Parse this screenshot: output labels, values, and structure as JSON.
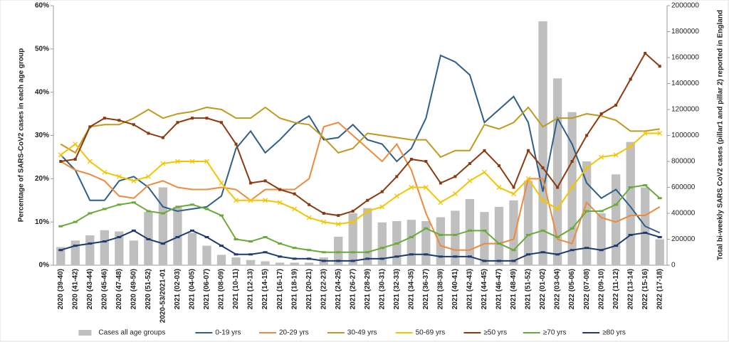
{
  "chart_data": {
    "type": "bar-line",
    "y_label": "Percentage of SARS-CoV2 cases in each age group",
    "y2_label": "Total bi-weekly SARS CoV2 cases (pillar1 and pillar 2) reported in England",
    "categories": [
      "2020 (39-40)",
      "2020 (41-42)",
      "2020 (43-44)",
      "2020 (45-46)",
      "2020 (47-48)",
      "2020 (49-50)",
      "2020 (51-52)",
      "2020-53/2021-01",
      "2021 (02-03)",
      "2021 (04-05)",
      "2021 (06-07)",
      "2021 (08-09)",
      "2021 (10-11)",
      "2021 (12-13)",
      "2021 (14-15)",
      "2021 (16-17)",
      "2021 (18-19)",
      "2021 (20-21)",
      "2021 (22-23)",
      "2021 (24-25)",
      "2021 (26-27)",
      "2021 (28-29)",
      "2021 (30-31)",
      "2021 (32-33)",
      "2021 (34-35)",
      "2021 (36-37)",
      "2021 (38-39)",
      "2021 (40-41)",
      "2021 (42-43)",
      "2021 (44-45)",
      "2021 (46-47)",
      "2021 (48-49)",
      "2021 (51-52)",
      "2022 (01-02)",
      "2022 (03-04)",
      "2022 (05-06)",
      "2022 (07-08)",
      "2022 (09-10)",
      "2022 (11-12)",
      "2022 (13-14)",
      "2022 (15-16)",
      "2022 (17-18)"
    ],
    "ylim": [
      0,
      60
    ],
    "yticks": [
      {
        "value": 0,
        "label": "0%"
      },
      {
        "value": 10,
        "label": "10%"
      },
      {
        "value": 20,
        "label": "20%"
      },
      {
        "value": 30,
        "label": "30%"
      },
      {
        "value": 40,
        "label": "40%"
      },
      {
        "value": 50,
        "label": "50%"
      },
      {
        "value": 60,
        "label": "60%"
      }
    ],
    "y2lim": [
      0,
      2000000
    ],
    "y2ticks": [
      0,
      200000,
      400000,
      600000,
      800000,
      1000000,
      1200000,
      1400000,
      1600000,
      1800000,
      2000000
    ],
    "legend": "bottom",
    "series": [
      {
        "name": "Cases all age groups",
        "kind": "bar",
        "axis": "y2",
        "color": "#bfbfbf",
        "values": [
          140000,
          190000,
          230000,
          270000,
          260000,
          190000,
          410000,
          600000,
          450000,
          250000,
          150000,
          80000,
          60000,
          40000,
          30000,
          20000,
          20000,
          20000,
          60000,
          220000,
          400000,
          440000,
          330000,
          340000,
          350000,
          340000,
          370000,
          420000,
          510000,
          410000,
          450000,
          500000,
          650000,
          1880000,
          1440000,
          1180000,
          800000,
          400000,
          700000,
          950000,
          600000,
          200000
        ]
      },
      {
        "name": "0-19 yrs",
        "kind": "line",
        "marker": "none",
        "color": "#2e5f8a",
        "values": [
          25.5,
          22,
          15,
          15,
          19.5,
          20.5,
          18,
          13.5,
          12.5,
          13,
          13.5,
          16,
          27,
          31,
          26,
          29,
          32.5,
          34.5,
          29,
          29.5,
          32.5,
          29,
          28,
          24,
          27,
          34,
          48.5,
          47,
          44,
          33,
          36,
          39,
          33,
          17,
          34,
          28,
          19,
          15.5,
          17.5,
          13.5,
          9,
          7.5
        ]
      },
      {
        "name": "20-29 yrs",
        "kind": "line",
        "marker": "none",
        "color": "#ed8a3c",
        "values": [
          24,
          22,
          21,
          19.5,
          16,
          15.5,
          18.5,
          19.5,
          18,
          17.5,
          17.5,
          18,
          17.5,
          15,
          17.5,
          17.5,
          17.5,
          20,
          32,
          33,
          30,
          27,
          24,
          28,
          22,
          12,
          4.5,
          3.5,
          3.5,
          5,
          5,
          6,
          20,
          20,
          6,
          5,
          14.5,
          11,
          10,
          11.5,
          11.5,
          13.5
        ]
      },
      {
        "name": "30-49 yrs",
        "kind": "line",
        "marker": "none",
        "color": "#bf9a1d",
        "values": [
          28,
          26,
          32,
          32.5,
          32.5,
          34,
          36,
          34,
          35,
          35.5,
          36.5,
          36,
          34,
          34,
          36.5,
          34,
          33,
          32.5,
          29.5,
          26,
          27,
          30.5,
          30,
          29.5,
          29,
          29,
          25,
          26.5,
          26.5,
          32.5,
          31.5,
          33,
          36.5,
          32,
          34,
          34,
          35,
          34.5,
          33.5,
          31,
          31,
          31.5
        ]
      },
      {
        "name": "50-69 yrs",
        "kind": "line",
        "marker": "x",
        "color": "#f2c500",
        "values": [
          25.5,
          28,
          24,
          21.5,
          20.5,
          19.5,
          20.5,
          23.5,
          24,
          24,
          24,
          19,
          15,
          15,
          15,
          14.5,
          13,
          11,
          10,
          9.5,
          10,
          12.5,
          13.5,
          16,
          18,
          18,
          14.5,
          16.5,
          19.5,
          21.5,
          18,
          16.5,
          20,
          15,
          13,
          18,
          22.5,
          25,
          25.5,
          27.5,
          30.5,
          30.5
        ]
      },
      {
        "name": "≥50 yrs",
        "kind": "line",
        "marker": "square",
        "color": "#8b3a0f",
        "values": [
          24,
          24.5,
          32,
          34,
          33.5,
          32.5,
          30.5,
          29.5,
          33,
          34,
          34,
          33,
          28,
          19,
          19.5,
          17.5,
          16.5,
          14,
          12,
          11.5,
          12.5,
          15,
          17,
          20.5,
          24.5,
          24,
          19,
          20.5,
          23.5,
          26.5,
          23,
          18,
          26.5,
          22.5,
          18,
          24,
          30,
          35,
          37,
          43,
          49,
          46
        ]
      },
      {
        "name": "≥70 yrs",
        "kind": "line",
        "marker": "dash",
        "color": "#6aaa3a",
        "values": [
          9,
          10,
          12,
          13,
          14,
          14.5,
          12.5,
          12,
          13.5,
          14,
          13,
          11.5,
          6,
          5.5,
          6.5,
          5,
          4,
          3.5,
          3,
          3,
          3,
          3,
          4,
          5,
          6.5,
          8.5,
          7,
          7,
          8,
          8,
          5,
          3.5,
          7,
          8,
          6.5,
          8.5,
          12.5,
          12.5,
          14,
          18,
          18.5,
          15.5
        ]
      },
      {
        "name": "≥80 yrs",
        "kind": "line",
        "marker": "dash",
        "color": "#1f3a6e",
        "values": [
          3.5,
          4.5,
          5,
          5.5,
          6.5,
          8,
          6,
          5,
          6.5,
          8,
          6.5,
          4.5,
          2.5,
          2.5,
          3,
          2,
          1.5,
          1.5,
          1,
          1,
          1,
          1.5,
          1.5,
          2,
          2.5,
          2.5,
          2,
          2,
          2,
          1,
          1,
          1,
          2.5,
          3,
          2.5,
          3.5,
          4,
          3.5,
          4.5,
          7,
          7.5,
          6.5
        ]
      }
    ]
  }
}
